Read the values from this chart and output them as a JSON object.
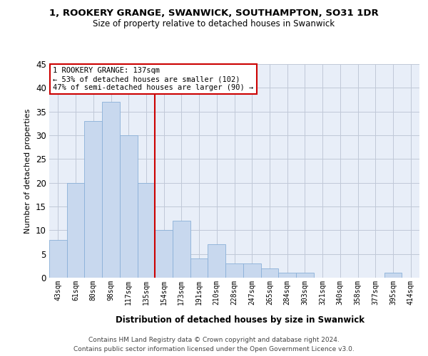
{
  "title1": "1, ROOKERY GRANGE, SWANWICK, SOUTHAMPTON, SO31 1DR",
  "title2": "Size of property relative to detached houses in Swanwick",
  "xlabel": "Distribution of detached houses by size in Swanwick",
  "ylabel": "Number of detached properties",
  "bar_labels": [
    "43sqm",
    "61sqm",
    "80sqm",
    "98sqm",
    "117sqm",
    "135sqm",
    "154sqm",
    "173sqm",
    "191sqm",
    "210sqm",
    "228sqm",
    "247sqm",
    "265sqm",
    "284sqm",
    "303sqm",
    "321sqm",
    "340sqm",
    "358sqm",
    "377sqm",
    "395sqm",
    "414sqm"
  ],
  "bar_values": [
    8,
    20,
    33,
    37,
    30,
    20,
    10,
    12,
    4,
    7,
    3,
    3,
    2,
    1,
    1,
    0,
    0,
    0,
    0,
    1,
    0
  ],
  "bar_color": "#c8d8ee",
  "bar_edgecolor": "#8ab0d8",
  "vline_position": 5.5,
  "vline_color": "#cc0000",
  "annotation_line1": "1 ROOKERY GRANGE: 137sqm",
  "annotation_line2": "← 53% of detached houses are smaller (102)",
  "annotation_line3": "47% of semi-detached houses are larger (90) →",
  "annotation_box_color": "#cc0000",
  "ylim": [
    0,
    45
  ],
  "yticks": [
    0,
    5,
    10,
    15,
    20,
    25,
    30,
    35,
    40,
    45
  ],
  "footer1": "Contains HM Land Registry data © Crown copyright and database right 2024.",
  "footer2": "Contains public sector information licensed under the Open Government Licence v3.0.",
  "background_color": "#ffffff",
  "plot_bg_color": "#e8eef8",
  "grid_color": "#c0c8d8"
}
